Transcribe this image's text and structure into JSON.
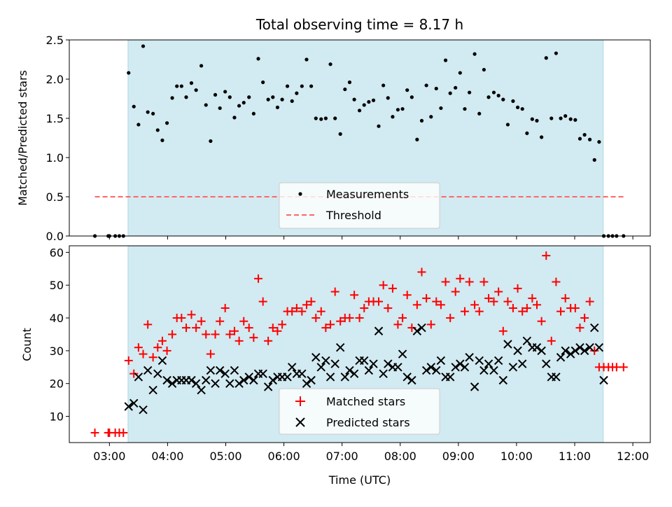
{
  "title": "Total observing time = 8.17 h",
  "colors": {
    "shade": "#add8e6",
    "measurement": "#000000",
    "threshold": "#ff6666",
    "matched": "#ff0000",
    "predicted": "#000000"
  },
  "chart_data": [
    {
      "type": "scatter",
      "name": "top",
      "xlabel": "",
      "ylabel": "Matched/Predicted stars",
      "x_unit": "decimal hours UTC",
      "xlim": [
        2.31,
        12.3
      ],
      "ylim": [
        0,
        2.5
      ],
      "yticks": [
        0.0,
        0.5,
        1.0,
        1.5,
        2.0,
        2.5
      ],
      "ytick_labels": [
        "0.0",
        "0.5",
        "1.0",
        "1.5",
        "2.0",
        "2.5"
      ],
      "shaded_span": [
        3.32,
        11.49
      ],
      "threshold": {
        "name": "Threshold",
        "value": 0.5,
        "x_range": [
          2.75,
          11.85
        ]
      },
      "legend": {
        "position": "lower-center",
        "entries": [
          "Measurements",
          "Threshold"
        ]
      },
      "series": [
        {
          "name": "Measurements",
          "marker": "dot",
          "x": [
            2.75,
            2.98,
            3.0,
            3.1,
            3.17,
            3.24,
            3.33,
            3.42,
            3.5,
            3.58,
            3.66,
            3.75,
            3.83,
            3.91,
            3.99,
            4.08,
            4.16,
            4.24,
            4.32,
            4.41,
            4.49,
            4.58,
            4.66,
            4.74,
            4.82,
            4.9,
            4.99,
            5.07,
            5.15,
            5.23,
            5.31,
            5.4,
            5.48,
            5.56,
            5.64,
            5.73,
            5.81,
            5.89,
            5.97,
            6.06,
            6.14,
            6.22,
            6.31,
            6.39,
            6.47,
            6.55,
            6.64,
            6.72,
            6.8,
            6.88,
            6.97,
            7.05,
            7.13,
            7.21,
            7.3,
            7.38,
            7.46,
            7.54,
            7.63,
            7.71,
            7.79,
            7.87,
            7.96,
            8.04,
            8.12,
            8.2,
            8.29,
            8.37,
            8.45,
            8.53,
            8.62,
            8.7,
            8.78,
            8.86,
            8.95,
            9.03,
            9.11,
            9.19,
            9.28,
            9.36,
            9.44,
            9.52,
            9.61,
            9.69,
            9.77,
            9.85,
            9.94,
            10.02,
            10.1,
            10.18,
            10.27,
            10.35,
            10.43,
            10.51,
            10.6,
            10.68,
            10.76,
            10.84,
            10.93,
            11.01,
            11.09,
            11.17,
            11.26,
            11.34,
            11.42,
            11.5,
            11.58,
            11.65,
            11.72,
            11.84
          ],
          "y": [
            0,
            0,
            0,
            0,
            0,
            0,
            2.08,
            1.65,
            1.42,
            2.42,
            1.58,
            1.56,
            1.35,
            1.22,
            1.44,
            1.76,
            1.91,
            1.91,
            1.77,
            1.95,
            1.86,
            2.17,
            1.67,
            1.21,
            1.8,
            1.63,
            1.84,
            1.77,
            1.51,
            1.66,
            1.7,
            1.77,
            1.56,
            2.26,
            1.96,
            1.74,
            1.77,
            1.64,
            1.74,
            1.91,
            1.72,
            1.82,
            1.91,
            2.25,
            1.91,
            1.5,
            1.49,
            1.5,
            2.19,
            1.5,
            1.3,
            1.87,
            1.96,
            1.74,
            1.6,
            1.67,
            1.71,
            1.73,
            1.4,
            1.92,
            1.76,
            1.52,
            1.61,
            1.62,
            1.86,
            1.77,
            1.23,
            1.47,
            1.92,
            1.52,
            1.88,
            1.63,
            2.24,
            1.82,
            1.89,
            2.08,
            1.62,
            1.83,
            2.32,
            1.56,
            2.12,
            1.77,
            1.83,
            1.79,
            1.74,
            1.42,
            1.72,
            1.64,
            1.62,
            1.31,
            1.49,
            1.47,
            1.26,
            2.27,
            1.5,
            2.33,
            1.5,
            1.53,
            1.49,
            1.48,
            1.24,
            1.29,
            1.23,
            0.97,
            1.2,
            0,
            0,
            0,
            0,
            0
          ]
        }
      ]
    },
    {
      "type": "scatter",
      "name": "bottom",
      "xlabel": "Time (UTC)",
      "ylabel": "Count",
      "x_unit": "decimal hours UTC",
      "xlim": [
        2.31,
        12.3
      ],
      "ylim": [
        2,
        62
      ],
      "xticks": [
        3,
        4,
        5,
        6,
        7,
        8,
        9,
        10,
        11,
        12
      ],
      "xtick_labels": [
        "03:00",
        "04:00",
        "05:00",
        "06:00",
        "07:00",
        "08:00",
        "09:00",
        "10:00",
        "11:00",
        "12:00"
      ],
      "yticks": [
        10,
        20,
        30,
        40,
        50,
        60
      ],
      "ytick_labels": [
        "10",
        "20",
        "30",
        "40",
        "50",
        "60"
      ],
      "shaded_span": [
        3.32,
        11.49
      ],
      "legend": {
        "position": "lower-center",
        "entries": [
          "Matched stars",
          "Predicted stars"
        ]
      },
      "series": [
        {
          "name": "Matched stars",
          "marker": "plus",
          "x": [
            2.75,
            2.98,
            3.0,
            3.1,
            3.17,
            3.24,
            3.33,
            3.42,
            3.5,
            3.58,
            3.66,
            3.75,
            3.83,
            3.91,
            3.99,
            4.08,
            4.16,
            4.24,
            4.32,
            4.41,
            4.49,
            4.58,
            4.66,
            4.74,
            4.82,
            4.9,
            4.99,
            5.07,
            5.15,
            5.23,
            5.31,
            5.4,
            5.48,
            5.56,
            5.64,
            5.73,
            5.81,
            5.89,
            5.97,
            6.06,
            6.14,
            6.22,
            6.31,
            6.39,
            6.47,
            6.55,
            6.64,
            6.72,
            6.8,
            6.88,
            6.97,
            7.05,
            7.13,
            7.21,
            7.3,
            7.38,
            7.46,
            7.54,
            7.63,
            7.71,
            7.79,
            7.87,
            7.96,
            8.04,
            8.12,
            8.2,
            8.29,
            8.37,
            8.45,
            8.53,
            8.62,
            8.7,
            8.78,
            8.86,
            8.95,
            9.03,
            9.11,
            9.19,
            9.28,
            9.36,
            9.44,
            9.52,
            9.61,
            9.69,
            9.77,
            9.85,
            9.94,
            10.02,
            10.1,
            10.18,
            10.27,
            10.35,
            10.43,
            10.51,
            10.6,
            10.68,
            10.76,
            10.84,
            10.93,
            11.01,
            11.09,
            11.17,
            11.26,
            11.34,
            11.42,
            11.5,
            11.58,
            11.65,
            11.72,
            11.84
          ],
          "y": [
            5,
            5,
            5,
            5,
            5,
            5,
            27,
            23,
            31,
            29,
            38,
            28,
            31,
            33,
            30,
            35,
            40,
            40,
            37,
            41,
            37,
            39,
            35,
            29,
            35,
            39,
            43,
            35,
            36,
            33,
            39,
            37,
            34,
            52,
            45,
            33,
            37,
            36,
            38,
            42,
            42,
            43,
            42,
            44,
            45,
            40,
            42,
            37,
            38,
            48,
            39,
            40,
            40,
            47,
            40,
            43,
            45,
            45,
            45,
            50,
            43,
            49,
            38,
            40,
            47,
            37,
            44,
            54,
            46,
            38,
            45,
            44,
            51,
            40,
            48,
            52,
            42,
            51,
            44,
            42,
            51,
            46,
            45,
            48,
            36,
            45,
            43,
            49,
            42,
            43,
            46,
            44,
            39,
            59,
            33,
            51,
            42,
            46,
            43,
            43,
            37,
            40,
            45,
            30,
            25,
            25,
            25,
            25,
            25,
            25
          ]
        },
        {
          "name": "Predicted stars",
          "marker": "x",
          "x": [
            3.33,
            3.42,
            3.5,
            3.58,
            3.66,
            3.75,
            3.83,
            3.91,
            3.99,
            4.08,
            4.16,
            4.24,
            4.32,
            4.41,
            4.49,
            4.58,
            4.66,
            4.74,
            4.82,
            4.9,
            4.99,
            5.07,
            5.15,
            5.23,
            5.31,
            5.4,
            5.48,
            5.56,
            5.64,
            5.73,
            5.81,
            5.89,
            5.97,
            6.06,
            6.14,
            6.22,
            6.31,
            6.39,
            6.47,
            6.55,
            6.64,
            6.72,
            6.8,
            6.88,
            6.97,
            7.05,
            7.13,
            7.21,
            7.3,
            7.38,
            7.46,
            7.54,
            7.63,
            7.71,
            7.79,
            7.87,
            7.96,
            8.04,
            8.12,
            8.2,
            8.29,
            8.37,
            8.45,
            8.53,
            8.62,
            8.7,
            8.78,
            8.86,
            8.95,
            9.03,
            9.11,
            9.19,
            9.28,
            9.36,
            9.44,
            9.52,
            9.61,
            9.69,
            9.77,
            9.85,
            9.94,
            10.02,
            10.1,
            10.18,
            10.27,
            10.35,
            10.43,
            10.51,
            10.6,
            10.68,
            10.76,
            10.84,
            10.93,
            11.01,
            11.09,
            11.17,
            11.26,
            11.34,
            11.42,
            11.5
          ],
          "y": [
            13,
            14,
            22,
            12,
            24,
            18,
            23,
            27,
            21,
            20,
            21,
            21,
            21,
            21,
            20,
            18,
            21,
            24,
            20,
            24,
            23,
            20,
            24,
            20,
            21,
            22,
            21,
            23,
            23,
            19,
            21,
            22,
            22,
            22,
            25,
            23,
            23,
            20,
            21,
            28,
            25,
            27,
            22,
            26,
            31,
            22,
            24,
            23,
            27,
            27,
            24,
            26,
            36,
            23,
            26,
            25,
            25,
            29,
            22,
            21,
            36,
            37,
            24,
            25,
            24,
            27,
            22,
            22,
            25,
            26,
            25,
            28,
            19,
            27,
            24,
            26,
            24,
            27,
            21,
            32,
            25,
            30,
            26,
            33,
            31,
            31,
            30,
            26,
            22,
            22,
            28,
            30,
            29,
            30,
            31,
            30,
            31,
            37,
            31,
            21
          ]
        }
      ]
    }
  ]
}
